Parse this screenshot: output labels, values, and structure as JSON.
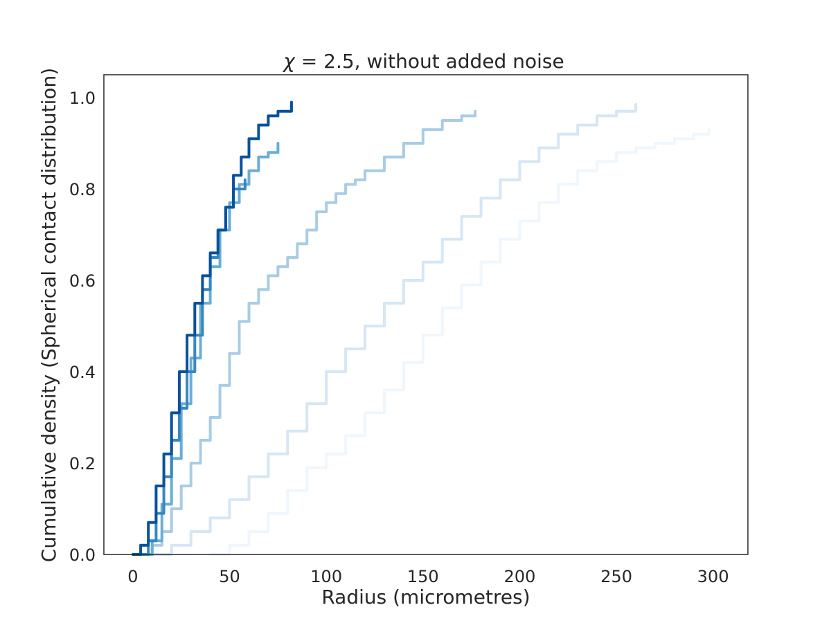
{
  "chart_data": {
    "type": "line",
    "title_symbol": "χ",
    "title_rest": " = 2.5, without added noise",
    "xlabel": "Radius (micrometres)",
    "ylabel": "Cumulative density (Spherical contact distribution)",
    "xlim": [
      -15,
      318
    ],
    "ylim": [
      0,
      1.05
    ],
    "xticks": [
      0,
      50,
      100,
      150,
      200,
      250,
      300
    ],
    "yticks": [
      0.0,
      0.2,
      0.4,
      0.6,
      0.8,
      1.0
    ],
    "ytick_labels": [
      "0.0",
      "0.2",
      "0.4",
      "0.6",
      "0.8",
      "1.0"
    ],
    "grid": false,
    "legend": "none",
    "series": [
      {
        "color": "#f0f6fd",
        "x": [
          40,
          50,
          60,
          70,
          80,
          90,
          100,
          110,
          120,
          130,
          140,
          150,
          160,
          170,
          180,
          190,
          200,
          210,
          220,
          230,
          240,
          250,
          260,
          270,
          280,
          290,
          298
        ],
        "y": [
          0.0,
          0.02,
          0.05,
          0.09,
          0.14,
          0.19,
          0.22,
          0.26,
          0.31,
          0.36,
          0.42,
          0.48,
          0.54,
          0.59,
          0.64,
          0.69,
          0.73,
          0.77,
          0.81,
          0.84,
          0.86,
          0.88,
          0.89,
          0.9,
          0.91,
          0.92,
          0.93
        ]
      },
      {
        "color": "#d6e6f4",
        "x": [
          10,
          20,
          30,
          40,
          50,
          60,
          70,
          80,
          90,
          100,
          110,
          120,
          130,
          140,
          150,
          160,
          170,
          180,
          190,
          200,
          210,
          220,
          230,
          240,
          250,
          260
        ],
        "y": [
          0.0,
          0.02,
          0.05,
          0.08,
          0.12,
          0.17,
          0.22,
          0.27,
          0.33,
          0.4,
          0.45,
          0.5,
          0.55,
          0.6,
          0.64,
          0.69,
          0.74,
          0.78,
          0.82,
          0.86,
          0.89,
          0.92,
          0.94,
          0.96,
          0.97,
          0.985
        ]
      },
      {
        "color": "#a9cce4",
        "x": [
          5,
          10,
          15,
          20,
          25,
          30,
          35,
          40,
          45,
          50,
          55,
          60,
          65,
          70,
          75,
          80,
          85,
          90,
          95,
          100,
          105,
          110,
          115,
          120,
          130,
          140,
          150,
          160,
          170,
          177
        ],
        "y": [
          0.0,
          0.02,
          0.05,
          0.1,
          0.15,
          0.2,
          0.25,
          0.3,
          0.37,
          0.44,
          0.51,
          0.55,
          0.58,
          0.61,
          0.63,
          0.65,
          0.68,
          0.71,
          0.75,
          0.77,
          0.79,
          0.81,
          0.82,
          0.84,
          0.87,
          0.9,
          0.93,
          0.95,
          0.96,
          0.97
        ]
      },
      {
        "color": "#6aadd6",
        "x": [
          5,
          10,
          15,
          20,
          25,
          30,
          35,
          40,
          45,
          50,
          55,
          60,
          65,
          70,
          75
        ],
        "y": [
          0.0,
          0.03,
          0.11,
          0.21,
          0.33,
          0.43,
          0.55,
          0.63,
          0.71,
          0.77,
          0.81,
          0.84,
          0.87,
          0.88,
          0.9
        ]
      },
      {
        "color": "#3787c0",
        "x": [
          4,
          8,
          12,
          16,
          20,
          24,
          28,
          32,
          36,
          40,
          44,
          48,
          52,
          58
        ],
        "y": [
          0.0,
          0.03,
          0.09,
          0.17,
          0.25,
          0.32,
          0.4,
          0.48,
          0.58,
          0.65,
          0.71,
          0.76,
          0.8,
          0.82
        ]
      },
      {
        "color": "#08519c",
        "x": [
          0,
          4,
          8,
          12,
          16,
          20,
          24,
          28,
          32,
          36,
          40,
          44,
          48,
          52,
          56,
          60,
          65,
          70,
          75,
          82
        ],
        "y": [
          0.0,
          0.02,
          0.07,
          0.15,
          0.22,
          0.31,
          0.4,
          0.48,
          0.55,
          0.61,
          0.66,
          0.71,
          0.76,
          0.83,
          0.87,
          0.91,
          0.94,
          0.96,
          0.97,
          0.99
        ]
      }
    ]
  }
}
